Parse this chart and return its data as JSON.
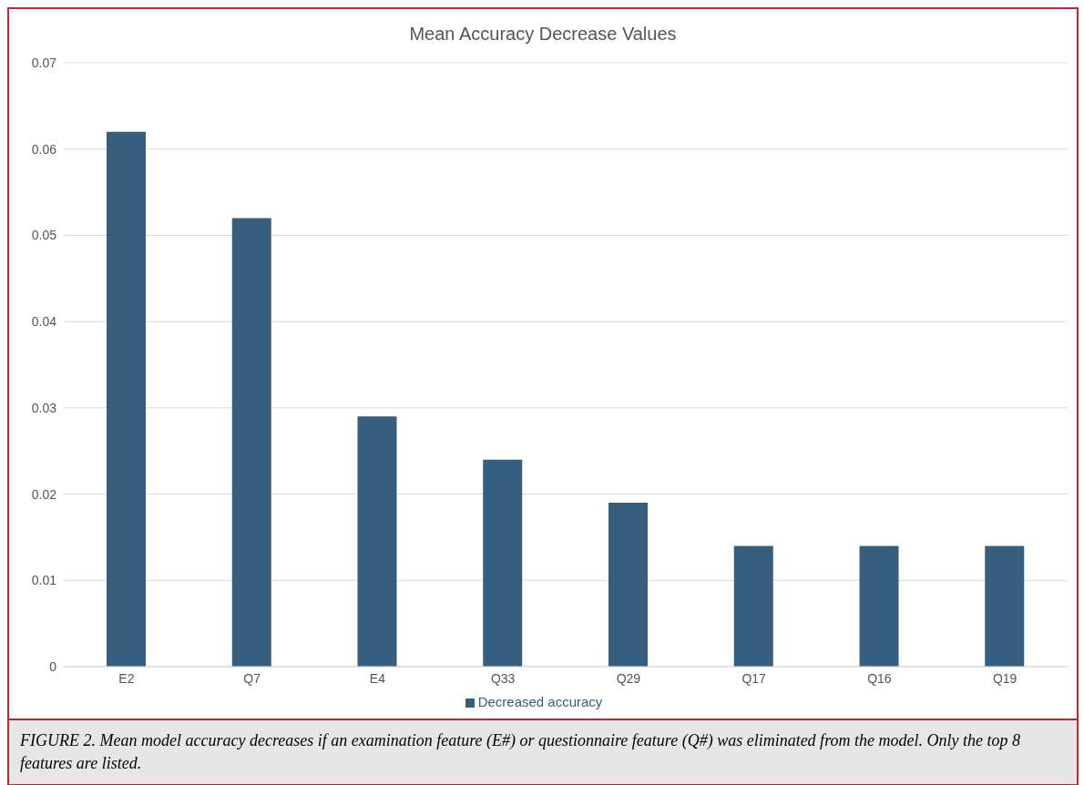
{
  "chart_data": {
    "type": "bar",
    "title": "Mean Accuracy Decrease Values",
    "categories": [
      "E2",
      "Q7",
      "E4",
      "Q33",
      "Q29",
      "Q17",
      "Q16",
      "Q19"
    ],
    "series": [
      {
        "name": "Decreased accuracy",
        "color": "#365f7f",
        "values": [
          0.062,
          0.052,
          0.029,
          0.024,
          0.019,
          0.014,
          0.014,
          0.014
        ]
      }
    ],
    "ylim": [
      0,
      0.07
    ],
    "yticks": [
      0,
      0.01,
      0.02,
      0.03,
      0.04,
      0.05,
      0.06,
      0.07
    ],
    "grid": "y",
    "legend": "bottom",
    "annotations": [
      "FIGURE 2. Mean model accuracy decreases if an examination feature (E#) or questionnaire feature (Q#) was eliminated from the model. Only the top 8 features are listed."
    ]
  }
}
